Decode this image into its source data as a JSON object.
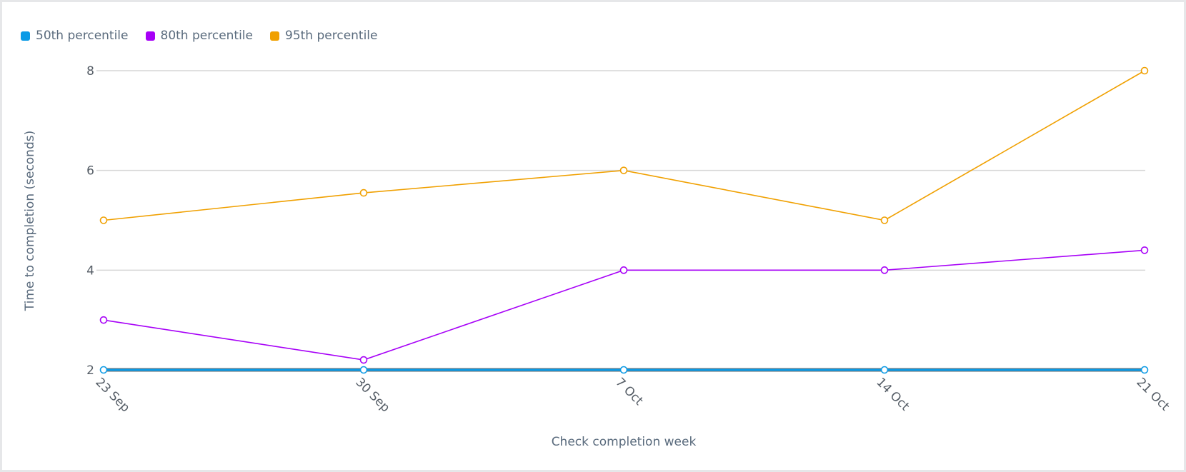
{
  "legend": [
    {
      "name": "50th percentile",
      "color": "#0a9ae6"
    },
    {
      "name": "80th percentile",
      "color": "#a700f7"
    },
    {
      "name": "95th percentile",
      "color": "#f0a000"
    }
  ],
  "axes": {
    "x_title": "Check completion week",
    "y_title": "Time to completion (seconds)",
    "y_ticks": [
      "2",
      "4",
      "6",
      "8"
    ],
    "x_ticks": [
      "23 Sep",
      "30 Sep",
      "7 Oct",
      "14 Oct",
      "21 Oct"
    ]
  },
  "chart_data": {
    "type": "line",
    "title": "",
    "xlabel": "Check completion week",
    "ylabel": "Time to completion (seconds)",
    "categories": [
      "23 Sep",
      "30 Sep",
      "7 Oct",
      "14 Oct",
      "21 Oct"
    ],
    "series": [
      {
        "name": "50th percentile",
        "color": "#0a9ae6",
        "values": [
          2,
          2,
          2,
          2,
          2
        ]
      },
      {
        "name": "80th percentile",
        "color": "#a700f7",
        "values": [
          3,
          2.2,
          4,
          4,
          4.4
        ]
      },
      {
        "name": "95th percentile",
        "color": "#f0a000",
        "values": [
          5,
          5.55,
          6,
          5,
          8
        ]
      }
    ],
    "ylim": [
      2,
      8
    ],
    "y_ticks": [
      2,
      4,
      6,
      8
    ],
    "grid": true,
    "legend_position": "top-left"
  }
}
